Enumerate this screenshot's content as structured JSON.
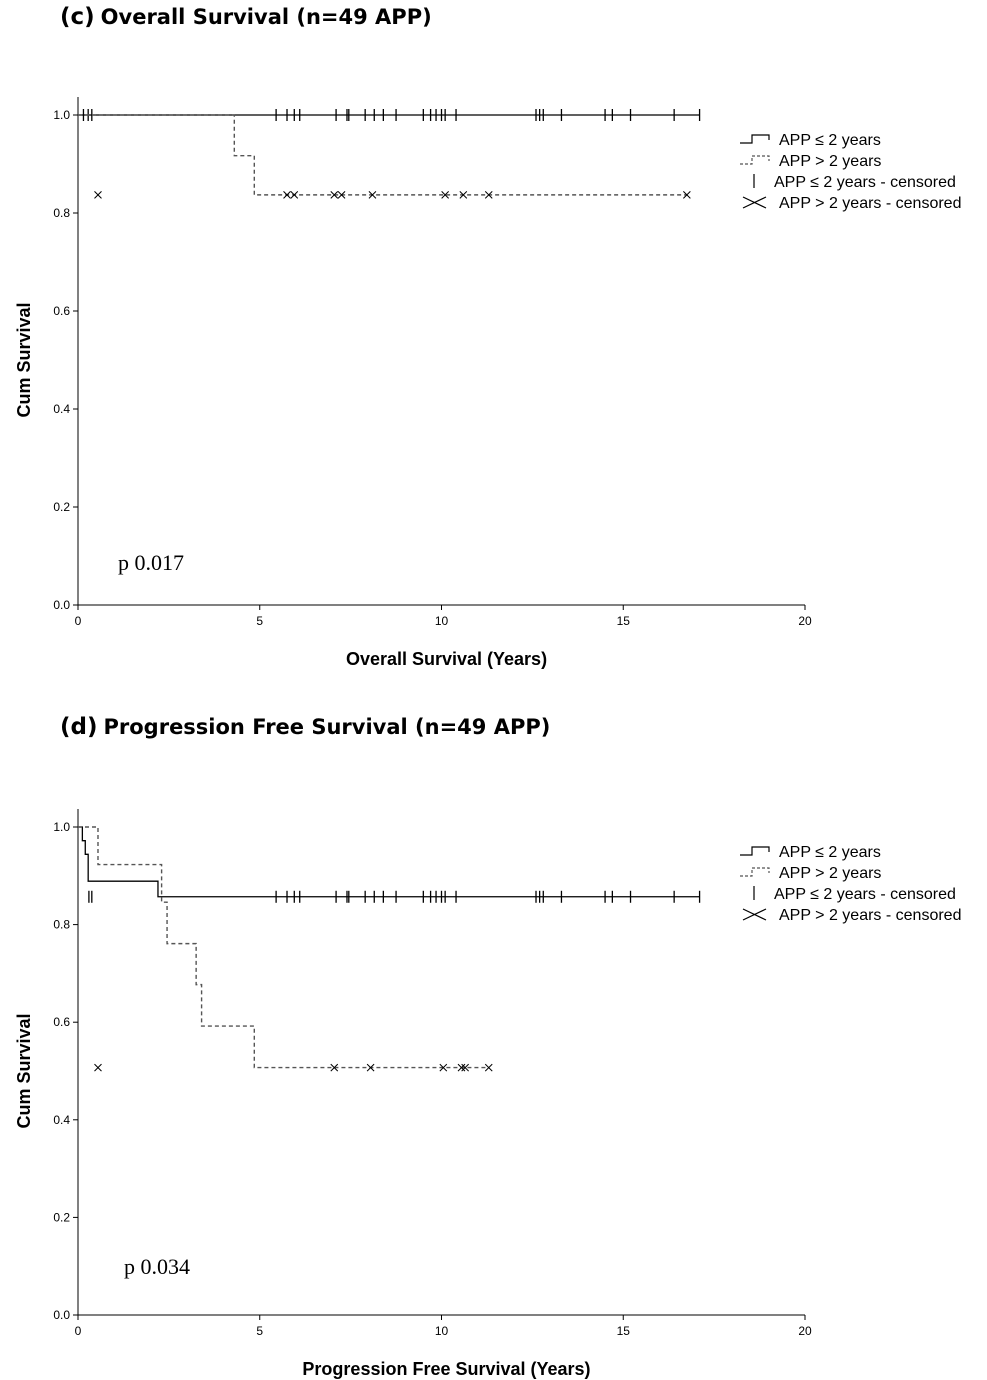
{
  "panels": [
    {
      "letter": "(c)",
      "title": "Overall Survival (n=49 APP)",
      "p_value": "p 0.017"
    },
    {
      "letter": "(d)",
      "title": "Progression Free Survival (n=49 APP)",
      "p_value": "p 0.034"
    }
  ],
  "chart_data": [
    {
      "type": "line",
      "xlabel": "Overall Survival (Years)",
      "ylabel": "Cum Survival",
      "xlim": [
        0,
        20
      ],
      "ylim": [
        0,
        1.0
      ],
      "x_ticks": [
        "0",
        "5",
        "10",
        "15",
        "20"
      ],
      "y_ticks": [
        "0.0",
        "0.2",
        "0.4",
        "0.6",
        "0.8",
        "1.0"
      ],
      "grid": false,
      "legend_placement": "right",
      "legend": [
        "APP ≤ 2 years",
        "APP > 2 years",
        "APP ≤ 2 years - censored",
        "APP > 2 years - censored"
      ],
      "series": [
        {
          "name": "APP ≤ 2 years",
          "style": "solid",
          "steps": [
            [
              0,
              1.0
            ],
            [
              17.1,
              1.0
            ]
          ],
          "censored": [
            0.15,
            0.28,
            0.38,
            5.45,
            5.75,
            5.95,
            6.1,
            7.1,
            7.4,
            7.45,
            7.9,
            8.15,
            8.4,
            8.75,
            9.5,
            9.7,
            9.85,
            10.0,
            10.1,
            10.4,
            12.6,
            12.7,
            12.8,
            13.3,
            14.5,
            14.7,
            15.2,
            16.4,
            17.1
          ],
          "censored_y": 1.0
        },
        {
          "name": "APP > 2 years",
          "style": "dashed",
          "steps": [
            [
              0,
              1.0
            ],
            [
              4.3,
              0.917
            ],
            [
              4.85,
              0.837
            ],
            [
              16.75,
              0.837
            ]
          ],
          "censored": [
            0.55,
            5.75,
            5.95,
            7.05,
            7.25,
            8.1,
            10.1,
            10.6,
            11.3,
            16.75
          ],
          "censored_y": 0.837
        }
      ]
    },
    {
      "type": "line",
      "xlabel": "Progression Free Survival (Years)",
      "ylabel": "Cum Survival",
      "xlim": [
        0,
        20
      ],
      "ylim": [
        0,
        1.0
      ],
      "x_ticks": [
        "0",
        "5",
        "10",
        "15",
        "20"
      ],
      "y_ticks": [
        "0.0",
        "0.2",
        "0.4",
        "0.6",
        "0.8",
        "1.0"
      ],
      "grid": false,
      "legend_placement": "right",
      "legend": [
        "APP ≤ 2 years",
        "APP > 2 years",
        "APP ≤ 2 years - censored",
        "APP > 2 years - censored"
      ],
      "series": [
        {
          "name": "APP ≤ 2 years",
          "style": "solid",
          "steps": [
            [
              0,
              1.0
            ],
            [
              0.12,
              0.972
            ],
            [
              0.2,
              0.944
            ],
            [
              0.28,
              0.889
            ],
            [
              2.15,
              0.889
            ],
            [
              2.2,
              0.857
            ],
            [
              17.1,
              0.857
            ]
          ],
          "censored": [
            0.3,
            0.38,
            5.45,
            5.75,
            5.95,
            6.1,
            7.1,
            7.4,
            7.45,
            7.9,
            8.15,
            8.4,
            8.75,
            9.5,
            9.7,
            9.85,
            10.0,
            10.1,
            10.4,
            12.6,
            12.7,
            12.8,
            13.3,
            14.5,
            14.7,
            15.2,
            16.4,
            17.1
          ],
          "censored_y": 0.857
        },
        {
          "name": "APP > 2 years",
          "style": "dashed",
          "steps": [
            [
              0,
              1.0
            ],
            [
              0.55,
              0.923
            ],
            [
              2.3,
              0.846
            ],
            [
              2.45,
              0.761
            ],
            [
              3.25,
              0.677
            ],
            [
              3.4,
              0.592
            ],
            [
              4.85,
              0.507
            ],
            [
              11.3,
              0.507
            ]
          ],
          "censored": [
            0.55,
            7.05,
            8.05,
            10.05,
            10.55,
            10.65,
            11.3
          ],
          "censored_y": 0.507
        }
      ]
    }
  ]
}
